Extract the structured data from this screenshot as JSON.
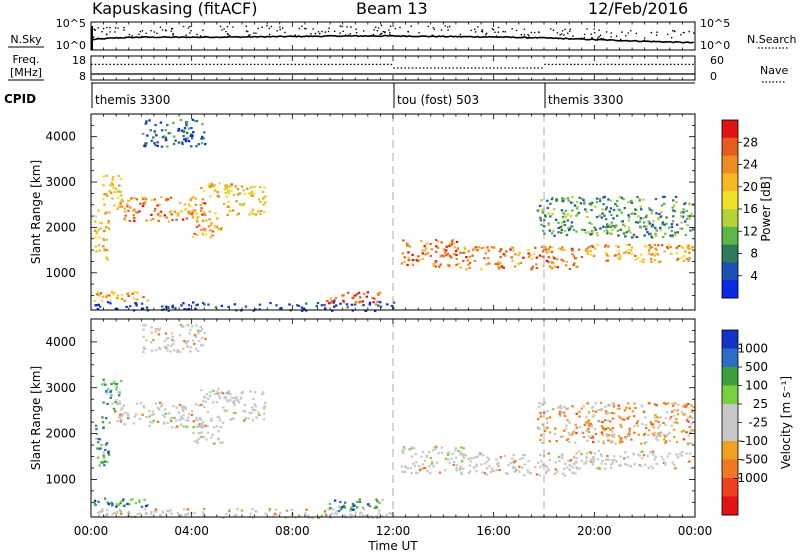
{
  "header": {
    "station": "Kapuskasing (fitACF)",
    "beam": "Beam 13",
    "date": "12/Feb/2016"
  },
  "chart_data": [
    {
      "type": "line",
      "panel": "noise",
      "left_label": "N.Sky",
      "left_ticks": [
        "10^5",
        "10^0"
      ],
      "right_label": "N.Search",
      "right_ticks": [
        "10^5",
        "10^0"
      ],
      "series": [
        {
          "name": "N.Sky",
          "style": "solid",
          "x": [
            0,
            1,
            2,
            4,
            6,
            8,
            10,
            12,
            14,
            16,
            18,
            20,
            22,
            24
          ],
          "y": [
            0.35,
            0.42,
            0.45,
            0.45,
            0.46,
            0.48,
            0.5,
            0.5,
            0.48,
            0.46,
            0.42,
            0.35,
            0.28,
            0.22
          ]
        },
        {
          "name": "N.Search",
          "style": "dotted",
          "x": [
            0,
            2,
            4,
            6,
            8,
            10,
            12,
            14,
            16,
            18,
            20,
            22,
            24
          ],
          "y": [
            0.2,
            0.25,
            0.25,
            0.28,
            0.3,
            0.3,
            0.3,
            0.28,
            0.25,
            0.2,
            0.15,
            0.1,
            0.08
          ]
        }
      ]
    },
    {
      "type": "line",
      "panel": "frequency",
      "left_label": "Freq.",
      "left_unit": "[MHz]",
      "left_ticks": [
        "18",
        "8"
      ],
      "right_label": "Nave",
      "right_ticks": [
        "60",
        "0"
      ],
      "series": [
        {
          "name": "Freq.",
          "style": "solid",
          "x": [
            0,
            24
          ],
          "y": [
            10.5,
            10.5
          ]
        },
        {
          "name": "Nave",
          "style": "dotted",
          "x": [
            0,
            12,
            12.01,
            18,
            18.01,
            24
          ],
          "y": [
            14.5,
            14.5,
            13,
            13,
            14.5,
            14.5
          ]
        }
      ]
    },
    {
      "type": "table",
      "panel": "cpid",
      "label": "CPID",
      "segments": [
        {
          "start": 0,
          "end": 12,
          "name": "themis 3300"
        },
        {
          "start": 12,
          "end": 18,
          "name": "tou (fost) 503"
        },
        {
          "start": 18,
          "end": 24,
          "name": "themis 3300"
        }
      ]
    },
    {
      "type": "heatmap",
      "panel": "power",
      "ylabel": "Slant Range [km]",
      "yticks": [
        1000,
        2000,
        3000,
        4000
      ],
      "ylim": [
        180,
        4500
      ],
      "xlim": [
        0,
        24
      ],
      "colorbar_label": "Power [dB]",
      "colorbar_ticks": [
        4,
        8,
        12,
        16,
        20,
        24,
        28
      ],
      "colors": [
        "#0a28e6",
        "#1c50b4",
        "#2f7a5a",
        "#5ab848",
        "#b6d234",
        "#f0e028",
        "#f6b824",
        "#ee8c22",
        "#e95a1e",
        "#e01414"
      ],
      "scatter_regions": [
        {
          "t0": 0.1,
          "t1": 2.4,
          "r0": 400,
          "r1": 620,
          "level": 0.7
        },
        {
          "t0": 0.1,
          "t1": 0.7,
          "r0": 1300,
          "r1": 2400,
          "level": 0.6
        },
        {
          "t0": 0.4,
          "t1": 1.2,
          "r0": 2500,
          "r1": 3200,
          "level": 0.6
        },
        {
          "t0": 1.0,
          "t1": 4.6,
          "r0": 2150,
          "r1": 2700,
          "level": 0.75
        },
        {
          "t0": 4.3,
          "t1": 5.8,
          "r0": 2700,
          "r1": 3000,
          "level": 0.65
        },
        {
          "t0": 4.0,
          "t1": 5.2,
          "r0": 1800,
          "r1": 2400,
          "level": 0.7
        },
        {
          "t0": 5.2,
          "t1": 6.9,
          "r0": 2300,
          "r1": 2950,
          "level": 0.6
        },
        {
          "t0": 9.3,
          "t1": 11.6,
          "r0": 320,
          "r1": 600,
          "level": 0.85
        },
        {
          "t0": 12.3,
          "t1": 14.8,
          "r0": 1150,
          "r1": 1750,
          "level": 0.8
        },
        {
          "t0": 14.6,
          "t1": 19.3,
          "r0": 1100,
          "r1": 1600,
          "level": 0.75
        },
        {
          "t0": 19.2,
          "t1": 23.9,
          "r0": 1250,
          "r1": 1650,
          "level": 0.7
        },
        {
          "t0": 17.7,
          "t1": 23.9,
          "r0": 1800,
          "r1": 2700,
          "level": 0.3
        },
        {
          "t0": 2.0,
          "t1": 4.5,
          "r0": 3800,
          "r1": 4400,
          "level": 0.2
        },
        {
          "t0": 0.1,
          "t1": 12.0,
          "r0": 180,
          "r1": 380,
          "level": 0.05
        }
      ]
    },
    {
      "type": "heatmap",
      "panel": "velocity",
      "ylabel": "Slant Range [km]",
      "yticks": [
        1000,
        2000,
        3000,
        4000
      ],
      "ylim": [
        180,
        4500
      ],
      "xlim": [
        0,
        24
      ],
      "xticks": [
        "00:00",
        "04:00",
        "08:00",
        "12:00",
        "16:00",
        "20:00",
        "00:00"
      ],
      "xlabel": "Time UT",
      "colorbar_label": "Velocity [m s⁻¹]",
      "colorbar_ticks": [
        "1000",
        "500",
        "100",
        "25",
        "-25",
        "-100",
        "-500",
        "-1000"
      ],
      "colors": [
        "#1432c8",
        "#2a6ec8",
        "#3ca03c",
        "#78d040",
        "#c8c8c8",
        "#c8c8c8",
        "#f0a020",
        "#f07820",
        "#f04020",
        "#e01414"
      ],
      "scatter_regions": [
        {
          "t0": 0.1,
          "t1": 2.4,
          "r0": 400,
          "r1": 620,
          "level": 0.8
        },
        {
          "t0": 0.1,
          "t1": 0.7,
          "r0": 1300,
          "r1": 2400,
          "level": 0.75
        },
        {
          "t0": 0.4,
          "t1": 1.2,
          "r0": 2500,
          "r1": 3200,
          "level": 0.72
        },
        {
          "t0": 1.0,
          "t1": 4.6,
          "r0": 2150,
          "r1": 2700,
          "level": 0.5
        },
        {
          "t0": 4.3,
          "t1": 5.8,
          "r0": 2700,
          "r1": 3000,
          "level": 0.5
        },
        {
          "t0": 4.0,
          "t1": 5.2,
          "r0": 1800,
          "r1": 2400,
          "level": 0.5
        },
        {
          "t0": 5.2,
          "t1": 6.9,
          "r0": 2300,
          "r1": 2950,
          "level": 0.5
        },
        {
          "t0": 9.3,
          "t1": 11.6,
          "r0": 320,
          "r1": 600,
          "level": 0.75
        },
        {
          "t0": 12.3,
          "t1": 14.8,
          "r0": 1150,
          "r1": 1750,
          "level": 0.5
        },
        {
          "t0": 14.6,
          "t1": 19.3,
          "r0": 1100,
          "r1": 1600,
          "level": 0.5
        },
        {
          "t0": 19.2,
          "t1": 23.9,
          "r0": 1250,
          "r1": 1650,
          "level": 0.5
        },
        {
          "t0": 17.7,
          "t1": 23.9,
          "r0": 1800,
          "r1": 2700,
          "level": 0.35
        },
        {
          "t0": 2.0,
          "t1": 4.5,
          "r0": 3800,
          "r1": 4400,
          "level": 0.5
        },
        {
          "t0": 0.1,
          "t1": 12.0,
          "r0": 180,
          "r1": 380,
          "level": 0.5
        }
      ]
    }
  ]
}
